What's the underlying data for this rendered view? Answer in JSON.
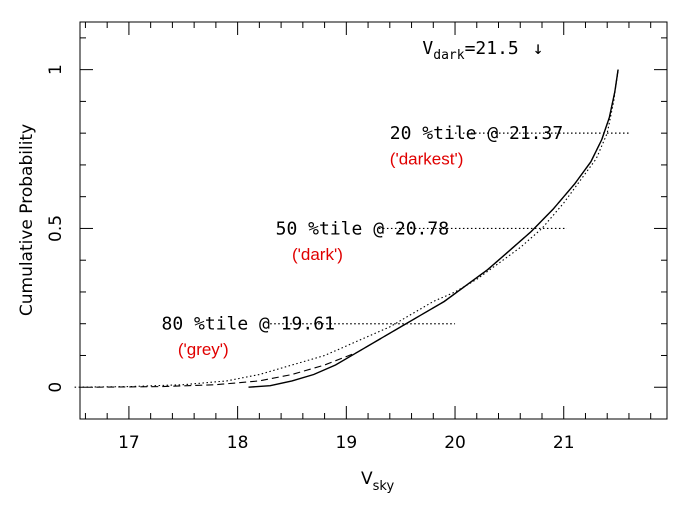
{
  "chart_data": {
    "type": "line",
    "xlabel_main": "V",
    "xlabel_sub": "sky",
    "ylabel": "Cumulative Probability",
    "xlim": [
      16.55,
      21.95
    ],
    "ylim": [
      -0.1,
      1.15
    ],
    "xticks": [
      17,
      18,
      19,
      20,
      21
    ],
    "yticks": [
      0,
      0.5,
      1
    ],
    "grid": false,
    "series": [
      {
        "style": "solid",
        "x": [
          18.1,
          18.3,
          18.5,
          18.7,
          18.9,
          19.1,
          19.3,
          19.5,
          19.7,
          19.9,
          20.1,
          20.3,
          20.5,
          20.7,
          20.9,
          21.1,
          21.25,
          21.35,
          21.42,
          21.47,
          21.5
        ],
        "y": [
          0.0,
          0.005,
          0.02,
          0.04,
          0.07,
          0.11,
          0.15,
          0.19,
          0.23,
          0.27,
          0.32,
          0.37,
          0.43,
          0.49,
          0.56,
          0.64,
          0.71,
          0.78,
          0.85,
          0.93,
          1.0
        ]
      },
      {
        "style": "dashed",
        "x": [
          16.7,
          17.3,
          17.8,
          18.2,
          18.5,
          18.8,
          19.1,
          19.3,
          19.5,
          19.7,
          19.9,
          20.1,
          20.3,
          20.5,
          20.7,
          20.9,
          21.1,
          21.25,
          21.35,
          21.42,
          21.47,
          21.5
        ],
        "y": [
          0.0,
          0.002,
          0.008,
          0.02,
          0.04,
          0.07,
          0.11,
          0.15,
          0.19,
          0.23,
          0.27,
          0.32,
          0.37,
          0.43,
          0.49,
          0.56,
          0.64,
          0.71,
          0.78,
          0.85,
          0.93,
          1.0
        ]
      },
      {
        "style": "dotted",
        "x": [
          16.5,
          17.0,
          17.5,
          17.9,
          18.2,
          18.5,
          18.8,
          19.0,
          19.2,
          19.4,
          19.6,
          19.8,
          20.0,
          20.2,
          20.4,
          20.6,
          20.8,
          21.0,
          21.15,
          21.3,
          21.4,
          21.46,
          21.5
        ],
        "y": [
          0.0,
          0.002,
          0.008,
          0.02,
          0.04,
          0.07,
          0.1,
          0.13,
          0.16,
          0.19,
          0.23,
          0.27,
          0.3,
          0.34,
          0.39,
          0.44,
          0.5,
          0.58,
          0.65,
          0.72,
          0.8,
          0.9,
          1.0
        ]
      }
    ],
    "reference_lines": [
      {
        "x": [
          20.0,
          21.6
        ],
        "y": 0.8
      },
      {
        "x": [
          19.3,
          21.03
        ],
        "y": 0.5
      },
      {
        "x": [
          18.3,
          20.0
        ],
        "y": 0.2
      }
    ],
    "annotations": [
      {
        "text": "20 %tile @ 21.37",
        "x": 19.4,
        "y": 0.8,
        "color": "#000000"
      },
      {
        "text": "('darkest')",
        "x": 19.4,
        "y": 0.72,
        "color": "#e00000"
      },
      {
        "text": "50 %tile @ 20.78",
        "x": 18.35,
        "y": 0.5,
        "color": "#000000"
      },
      {
        "text": "('dark')",
        "x": 18.5,
        "y": 0.42,
        "color": "#e00000"
      },
      {
        "text": "80 %tile @ 19.61",
        "x": 17.3,
        "y": 0.2,
        "color": "#000000"
      },
      {
        "text": "('grey')",
        "x": 17.45,
        "y": 0.12,
        "color": "#e00000"
      }
    ],
    "vdark_label": {
      "main": "V",
      "sub": "dark",
      "value": "=21.5",
      "arrow": "↓",
      "x": 19.7,
      "y": 1.05
    }
  }
}
